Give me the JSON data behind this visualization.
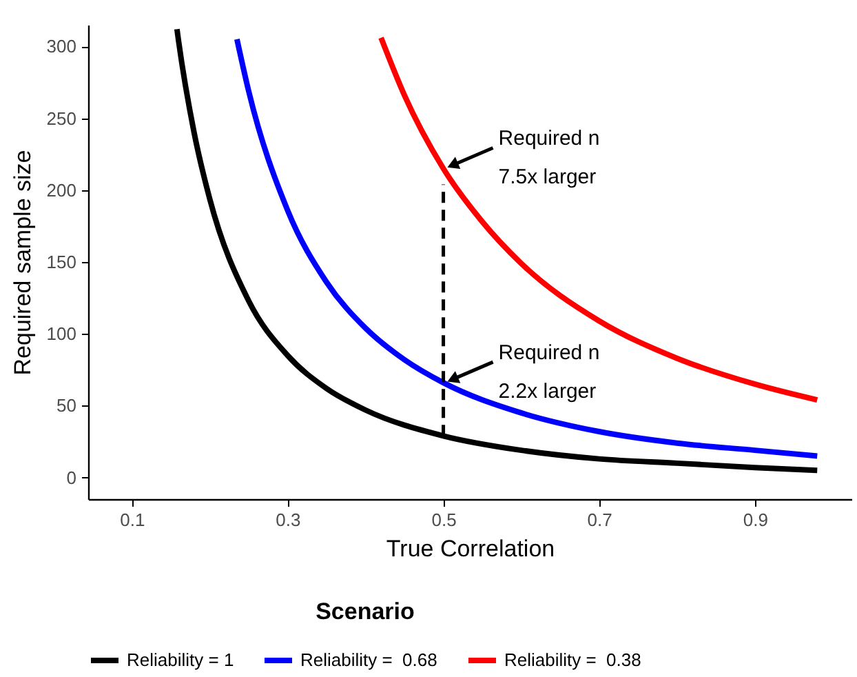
{
  "chart_data": {
    "type": "line",
    "xlabel": "True Correlation",
    "ylabel": "Required sample size",
    "legend_title": "Scenario",
    "legend": "bottom",
    "xlim": [
      0.044,
      1.024
    ],
    "xticks": [
      0.1,
      0.3,
      0.5,
      0.7,
      0.9
    ],
    "ylim": [
      -15,
      315
    ],
    "yticks": [
      0,
      50,
      100,
      150,
      200,
      250,
      300
    ],
    "series": [
      {
        "name": "Reliability = 1",
        "color": "#000000",
        "x": [
          0.158,
          0.16,
          0.18,
          0.2,
          0.25,
          0.3,
          0.35,
          0.4,
          0.5,
          0.6,
          0.7,
          0.8,
          0.9,
          0.98
        ],
        "values": [
          312,
          304,
          240,
          194,
          123,
          85,
          62,
          47,
          29,
          19,
          13,
          10,
          7,
          5
        ]
      },
      {
        "name": "Reliability =  0.68",
        "color": "#0000ff",
        "x": [
          0.235,
          0.25,
          0.3,
          0.35,
          0.4,
          0.45,
          0.5,
          0.6,
          0.7,
          0.8,
          0.9,
          0.98
        ],
        "values": [
          305,
          269,
          186,
          136,
          104,
          82,
          66,
          45,
          32,
          24,
          19,
          15
        ]
      },
      {
        "name": "Reliability =  0.38",
        "color": "#ff0000",
        "x": [
          0.42,
          0.45,
          0.5,
          0.55,
          0.6,
          0.7,
          0.8,
          0.9,
          0.98
        ],
        "values": [
          306,
          266,
          215,
          178,
          149,
          109,
          83,
          65,
          54
        ]
      },
      {
        "color": "#000000",
        "line_style": "dashed",
        "x": [
          0.5,
          0.5
        ],
        "values": [
          29,
          204
        ]
      }
    ],
    "annotations": [
      {
        "text": "Required n\n7.5x larger",
        "x": 0.5,
        "y": 215
      },
      {
        "text": "Required n\n2.2x larger",
        "x": 0.5,
        "y": 66
      }
    ]
  }
}
